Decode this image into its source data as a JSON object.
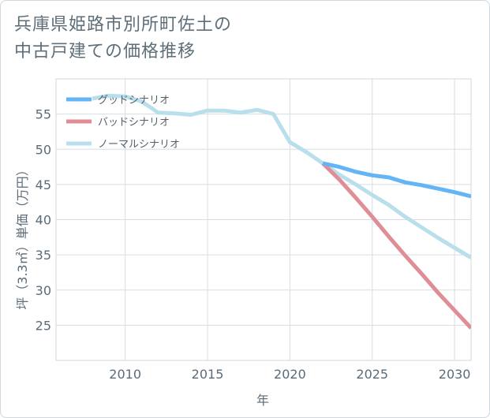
{
  "title_line1": "兵庫県姫路市別所町佐土の",
  "title_line2": "中古戸建ての価格推移",
  "chart_data": {
    "type": "line",
    "title": "兵庫県姫路市別所町佐土の中古戸建ての価格推移",
    "xlabel": "年",
    "ylabel": "坪（3.3㎡）単価（万円）",
    "xlim": [
      2005.8,
      2031
    ],
    "ylim": [
      20,
      60
    ],
    "x_ticks": [
      2010,
      2015,
      2020,
      2025,
      2030
    ],
    "y_ticks": [
      25,
      30,
      35,
      40,
      45,
      50,
      55
    ],
    "grid": true,
    "legend_position": "top-left",
    "series": [
      {
        "name": "グッドシナリオ",
        "color": "#64b5f6",
        "x": [
          2022,
          2023,
          2024,
          2025,
          2026,
          2027,
          2028,
          2029,
          2030,
          2031
        ],
        "y": [
          48.0,
          47.5,
          46.8,
          46.3,
          46.0,
          45.3,
          44.9,
          44.4,
          43.9,
          43.3
        ]
      },
      {
        "name": "バッドシナリオ",
        "color": "#e08e96",
        "x": [
          2022,
          2023,
          2024,
          2025,
          2026,
          2027,
          2028,
          2029,
          2030,
          2031
        ],
        "y": [
          48.0,
          45.7,
          43.1,
          40.4,
          37.6,
          34.9,
          32.3,
          29.6,
          27.1,
          24.6
        ]
      },
      {
        "name": "ノーマルシナリオ",
        "color": "#b9dfec",
        "x": [
          2008,
          2009,
          2010,
          2011,
          2012,
          2013,
          2014,
          2015,
          2016,
          2017,
          2018,
          2019,
          2020,
          2021,
          2022,
          2023,
          2024,
          2025,
          2026,
          2027,
          2028,
          2029,
          2030,
          2031
        ],
        "y": [
          57.2,
          57.6,
          57.5,
          56.8,
          55.2,
          55.1,
          54.9,
          55.5,
          55.5,
          55.2,
          55.6,
          55.0,
          51.0,
          49.6,
          48.0,
          46.4,
          45.0,
          43.5,
          42.1,
          40.4,
          38.9,
          37.4,
          36.0,
          34.6
        ]
      }
    ]
  }
}
